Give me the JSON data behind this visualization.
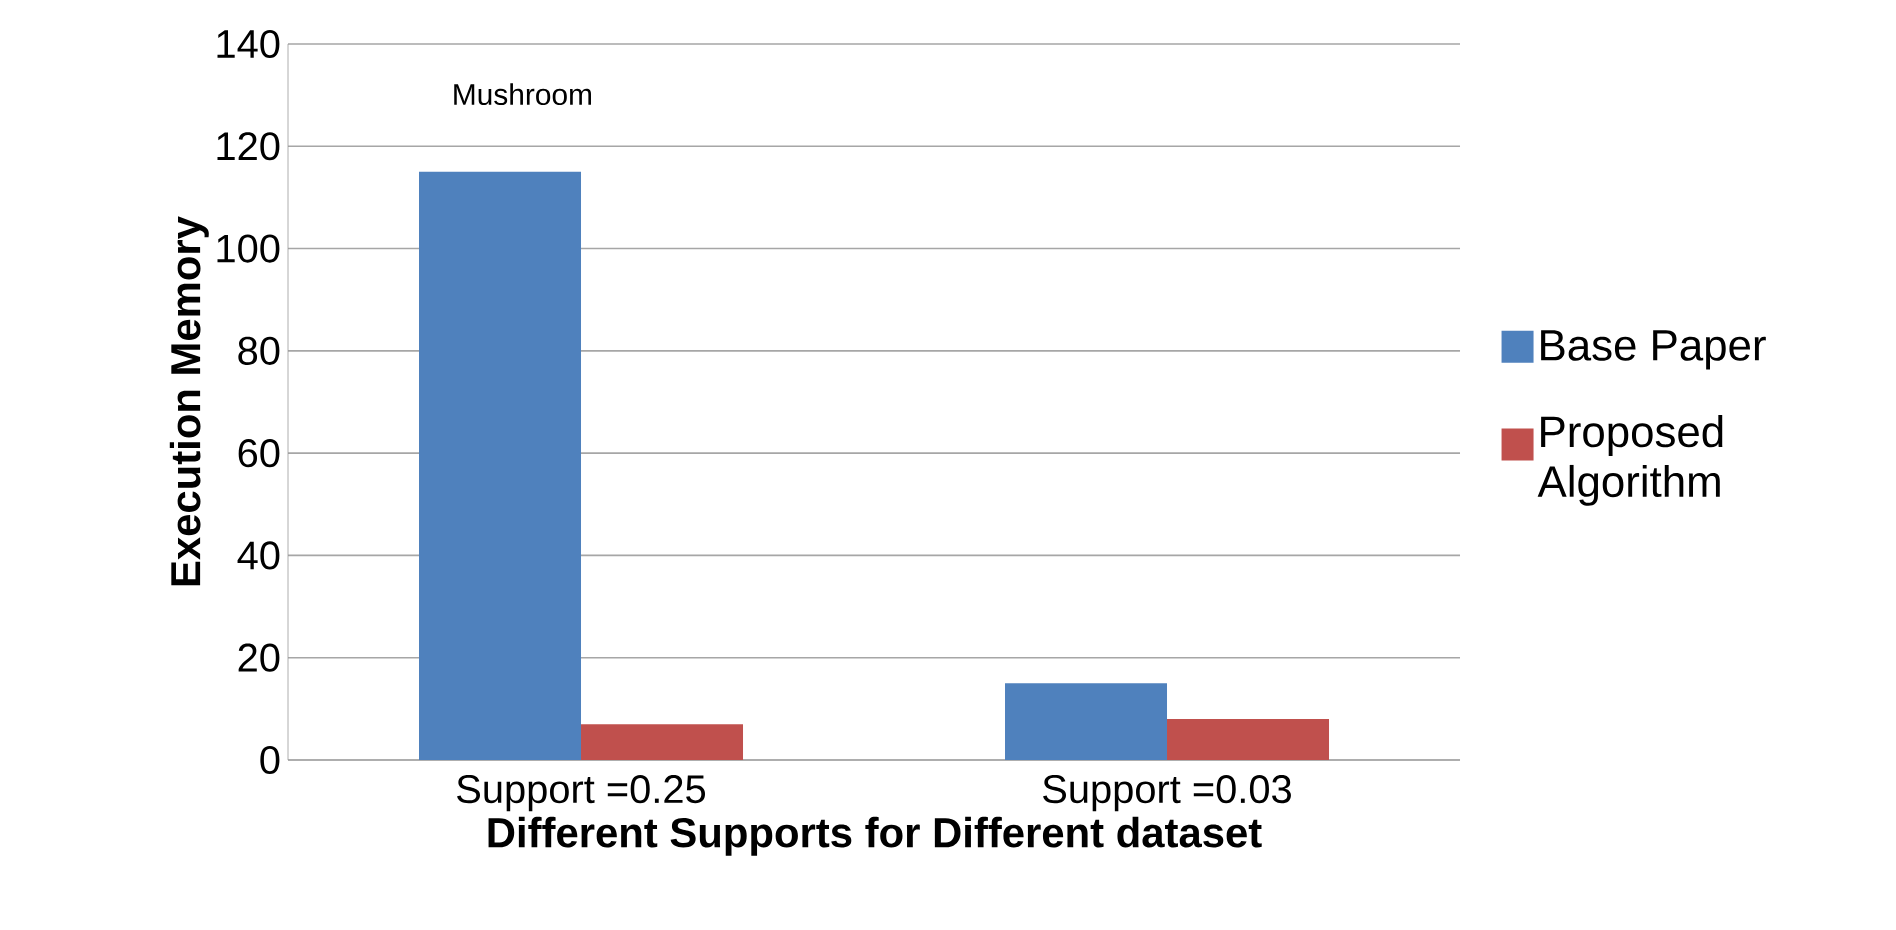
{
  "chart_data": {
    "type": "bar",
    "xlabel": "Different Supports for Different dataset",
    "ylabel": "Execution Memory",
    "categories": [
      "Support =0.25",
      "Support =0.03"
    ],
    "series": [
      {
        "name": "Base Paper",
        "color": "#4f81bd",
        "values": [
          115,
          15
        ]
      },
      {
        "name": "Proposed Algorithm",
        "color": "#c0504d",
        "values": [
          7,
          8
        ]
      }
    ],
    "ylim": [
      0,
      140
    ],
    "yticks": [
      0,
      20,
      40,
      60,
      80,
      100,
      120,
      140
    ],
    "grid": "y",
    "legend": "right",
    "annotations": [
      "Mushroom"
    ]
  }
}
